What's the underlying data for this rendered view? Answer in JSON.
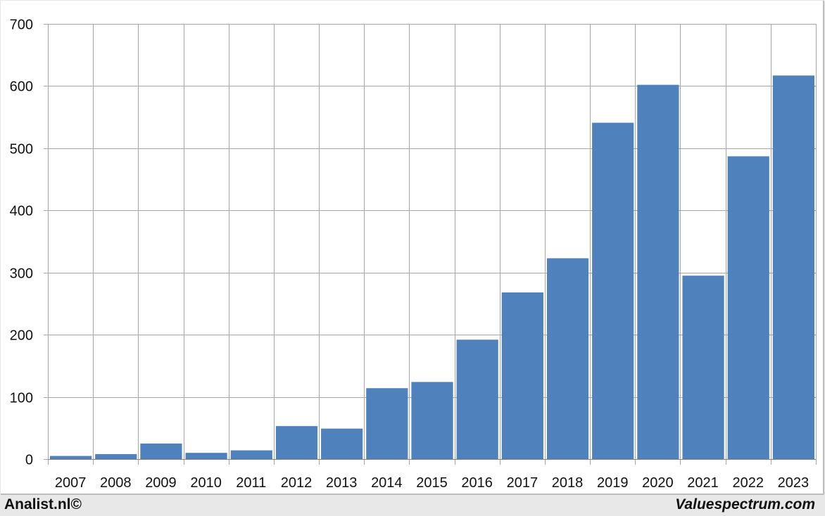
{
  "footer": {
    "left": "Analist.nl©",
    "right": "Valuespectrum.com"
  },
  "colors": {
    "bar": "#4f81bd",
    "grid": "#a6a6a6"
  },
  "chart_data": {
    "type": "bar",
    "title": "",
    "xlabel": "",
    "ylabel": "",
    "categories": [
      "2007",
      "2008",
      "2009",
      "2010",
      "2011",
      "2012",
      "2013",
      "2014",
      "2015",
      "2016",
      "2017",
      "2018",
      "2019",
      "2020",
      "2021",
      "2022",
      "2023"
    ],
    "values": [
      5,
      8,
      25,
      10,
      14,
      53,
      49,
      114,
      124,
      192,
      268,
      323,
      541,
      602,
      295,
      487,
      617
    ],
    "ylim": [
      0,
      700
    ],
    "yticks": [
      0,
      100,
      200,
      300,
      400,
      500,
      600,
      700
    ],
    "grid": true,
    "legend": "none"
  }
}
